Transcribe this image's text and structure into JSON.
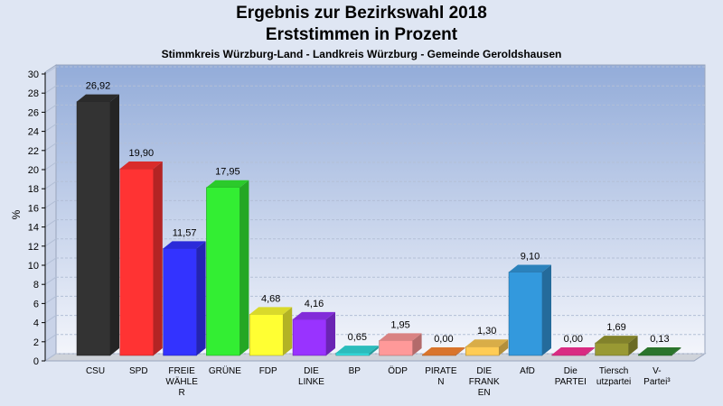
{
  "chart_data": {
    "type": "bar",
    "title_lines": [
      "Ergebnis zur Bezirkswahl 2018",
      "Erststimmen in Prozent"
    ],
    "subtitle": "Stimmkreis Würzburg-Land - Landkreis Würzburg - Gemeinde Geroldshausen",
    "ylabel": "%",
    "xlabel": "",
    "ylim": [
      0,
      30
    ],
    "ytick_step": 2,
    "grid": true,
    "categories": [
      [
        "CSU"
      ],
      [
        "SPD"
      ],
      [
        "FREIE",
        "WÄHLE",
        "R"
      ],
      [
        "GRÜNE"
      ],
      [
        "FDP"
      ],
      [
        "DIE",
        "LINKE"
      ],
      [
        "BP"
      ],
      [
        "ÖDP"
      ],
      [
        "PIRATE",
        "N"
      ],
      [
        "DIE",
        "FRANK",
        "EN"
      ],
      [
        "AfD"
      ],
      [
        "Die",
        "PARTEI"
      ],
      [
        "Tiersch",
        "utzpartei"
      ],
      [
        "V-",
        "Partei³"
      ]
    ],
    "values": [
      26.92,
      19.9,
      11.57,
      17.95,
      4.68,
      4.16,
      0.65,
      1.95,
      0.0,
      1.3,
      9.1,
      0.0,
      1.69,
      0.13
    ],
    "value_labels": [
      "26,92",
      "19,90",
      "11,57",
      "17,95",
      "4,68",
      "4,16",
      "0,65",
      "1,95",
      "0,00",
      "1,30",
      "9,10",
      "0,00",
      "1,69",
      "0,13"
    ],
    "colors": [
      "#333333",
      "#ff3333",
      "#3333ff",
      "#33ee33",
      "#ffff33",
      "#9933ff",
      "#33dddd",
      "#ff9999",
      "#ff8833",
      "#ffcc55",
      "#3399dd",
      "#ff3399",
      "#999933",
      "#338833"
    ]
  }
}
